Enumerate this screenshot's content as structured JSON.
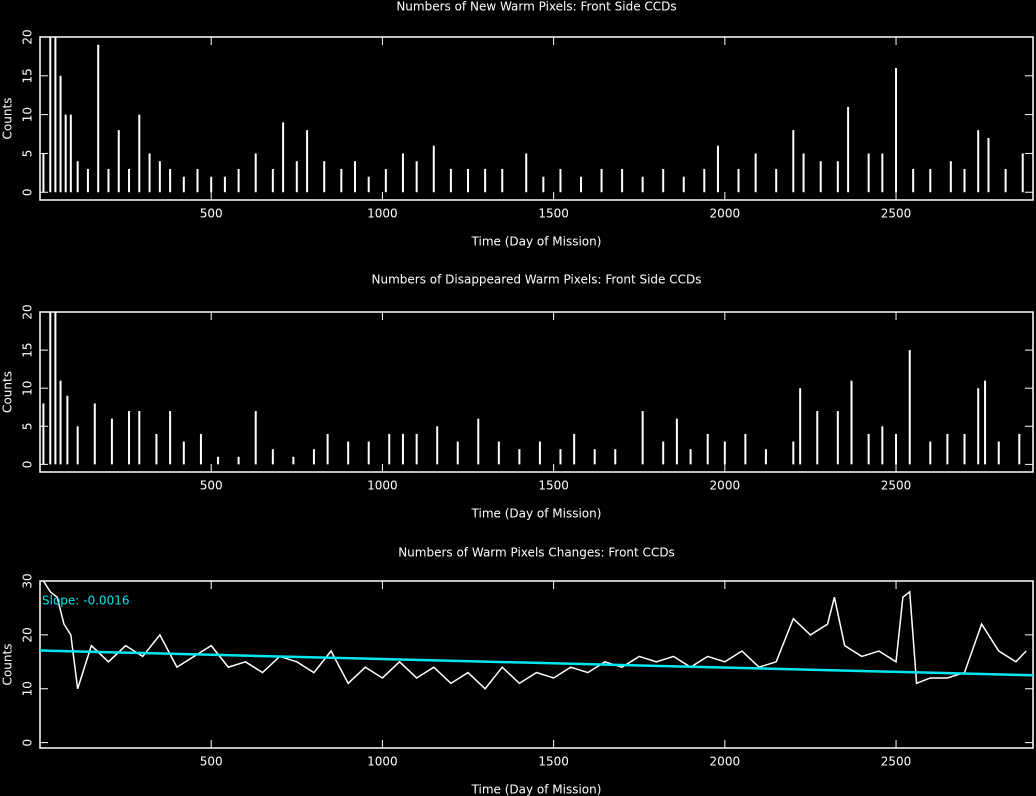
{
  "chart_data": [
    {
      "type": "bar",
      "title": "Numbers of New Warm Pixels: Front Side CCDs",
      "x_label": "Time (Day of Mission)",
      "y_label": "Counts",
      "xlim": [
        0,
        2900
      ],
      "ylim": [
        -1,
        20
      ],
      "xticks": [
        500,
        1000,
        1500,
        2000,
        2500
      ],
      "yticks": [
        0,
        5,
        10,
        15,
        20
      ],
      "series": [
        {
          "color": "#ffffff",
          "x": [
            10,
            30,
            45,
            60,
            75,
            90,
            110,
            140,
            170,
            200,
            230,
            260,
            290,
            320,
            350,
            380,
            420,
            460,
            500,
            540,
            580,
            630,
            680,
            710,
            750,
            780,
            830,
            880,
            920,
            960,
            1010,
            1060,
            1100,
            1150,
            1200,
            1250,
            1300,
            1350,
            1420,
            1470,
            1520,
            1580,
            1640,
            1700,
            1760,
            1820,
            1880,
            1940,
            1980,
            2040,
            2090,
            2150,
            2200,
            2230,
            2280,
            2330,
            2360,
            2420,
            2460,
            2500,
            2550,
            2600,
            2660,
            2700,
            2740,
            2770,
            2820,
            2870
          ],
          "values": [
            5,
            20,
            20,
            15,
            10,
            10,
            4,
            3,
            19,
            3,
            8,
            3,
            10,
            5,
            4,
            3,
            2,
            3,
            2,
            2,
            3,
            5,
            3,
            9,
            4,
            8,
            4,
            3,
            4,
            2,
            3,
            5,
            4,
            6,
            3,
            3,
            3,
            3,
            5,
            2,
            3,
            2,
            3,
            3,
            2,
            3,
            2,
            3,
            6,
            3,
            5,
            3,
            8,
            5,
            4,
            4,
            11,
            5,
            5,
            16,
            3,
            3,
            4,
            3,
            8,
            7,
            3,
            5
          ]
        }
      ]
    },
    {
      "type": "bar",
      "title": "Numbers of Disappeared Warm Pixels: Front Side CCDs",
      "x_label": "Time (Day of Mission)",
      "y_label": "Counts",
      "xlim": [
        0,
        2900
      ],
      "ylim": [
        -1,
        20
      ],
      "xticks": [
        500,
        1000,
        1500,
        2000,
        2500
      ],
      "yticks": [
        0,
        5,
        10,
        15,
        20
      ],
      "series": [
        {
          "color": "#ffffff",
          "x": [
            10,
            30,
            45,
            60,
            80,
            110,
            160,
            210,
            260,
            290,
            340,
            380,
            420,
            470,
            520,
            580,
            630,
            680,
            740,
            800,
            840,
            900,
            960,
            1020,
            1060,
            1100,
            1160,
            1220,
            1280,
            1340,
            1400,
            1460,
            1520,
            1560,
            1620,
            1680,
            1760,
            1820,
            1860,
            1900,
            1950,
            2000,
            2060,
            2120,
            2200,
            2220,
            2270,
            2330,
            2370,
            2420,
            2460,
            2500,
            2540,
            2600,
            2650,
            2700,
            2740,
            2760,
            2800,
            2860
          ],
          "values": [
            8,
            20,
            20,
            11,
            9,
            5,
            8,
            6,
            7,
            7,
            4,
            7,
            3,
            4,
            1,
            1,
            7,
            2,
            1,
            2,
            4,
            3,
            3,
            4,
            4,
            4,
            5,
            3,
            6,
            3,
            2,
            3,
            2,
            4,
            2,
            2,
            7,
            3,
            6,
            2,
            4,
            3,
            4,
            2,
            3,
            10,
            7,
            7,
            11,
            4,
            5,
            4,
            15,
            3,
            4,
            4,
            10,
            11,
            3,
            4
          ]
        }
      ]
    },
    {
      "type": "line",
      "title": "Numbers of Warm Pixels Changes: Front CCDs",
      "x_label": "Time (Day of Mission)",
      "y_label": "Counts",
      "annotation": "Slope: -0.0016",
      "xlim": [
        0,
        2900
      ],
      "ylim": [
        -1,
        30
      ],
      "xticks": [
        500,
        1000,
        1500,
        2000,
        2500
      ],
      "yticks": [
        0,
        10,
        20,
        30
      ],
      "series": [
        {
          "color": "#ffffff",
          "x": [
            10,
            30,
            50,
            70,
            90,
            110,
            150,
            200,
            250,
            300,
            350,
            400,
            450,
            500,
            550,
            600,
            650,
            700,
            750,
            800,
            850,
            900,
            950,
            1000,
            1050,
            1100,
            1150,
            1200,
            1250,
            1300,
            1350,
            1400,
            1450,
            1500,
            1550,
            1600,
            1650,
            1700,
            1750,
            1800,
            1850,
            1900,
            1950,
            2000,
            2050,
            2100,
            2150,
            2200,
            2250,
            2300,
            2320,
            2350,
            2400,
            2450,
            2500,
            2520,
            2540,
            2560,
            2600,
            2650,
            2700,
            2750,
            2800,
            2850,
            2880
          ],
          "values": [
            30,
            28,
            27,
            22,
            20,
            10,
            18,
            15,
            18,
            16,
            20,
            14,
            16,
            18,
            14,
            15,
            13,
            16,
            15,
            13,
            17,
            11,
            14,
            12,
            15,
            12,
            14,
            11,
            13,
            10,
            14,
            11,
            13,
            12,
            14,
            13,
            15,
            14,
            16,
            15,
            16,
            14,
            16,
            15,
            17,
            14,
            15,
            23,
            20,
            22,
            27,
            18,
            16,
            17,
            15,
            27,
            28,
            11,
            12,
            12,
            13,
            22,
            17,
            15,
            17
          ]
        },
        {
          "color": "#00e5ee",
          "x": [
            0,
            2900
          ],
          "values": [
            17.1,
            12.5
          ]
        }
      ]
    }
  ]
}
